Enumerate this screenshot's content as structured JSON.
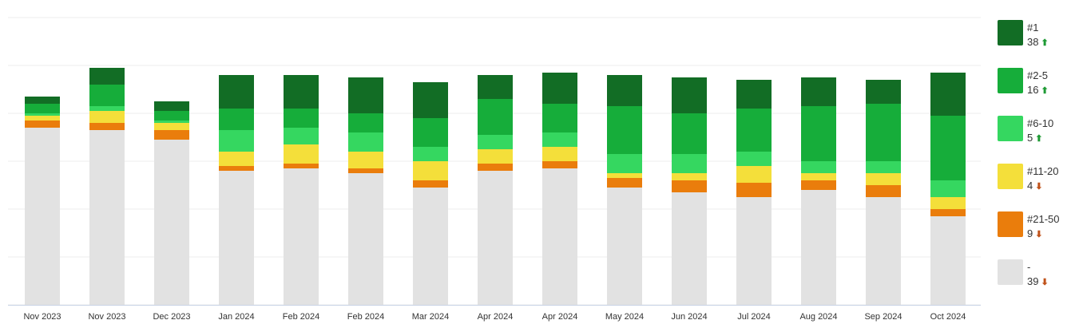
{
  "chart_data": {
    "type": "bar",
    "stacked": true,
    "categories": [
      "Nov 2023",
      "Nov 2023",
      "Dec 2023",
      "Jan 2024",
      "Feb 2024",
      "Feb 2024",
      "Mar 2024",
      "Apr 2024",
      "Apr 2024",
      "May 2024",
      "Jun 2024",
      "Jul 2024",
      "Aug 2024",
      "Sep 2024",
      "Oct 2024"
    ],
    "ylim": [
      0,
      120
    ],
    "grid": true,
    "legend_position": "right",
    "series": [
      {
        "name": "-",
        "color": "#e2e2e2",
        "values": [
          74,
          73,
          69,
          56,
          57,
          55,
          49,
          56,
          57,
          49,
          47,
          45,
          48,
          45,
          37
        ]
      },
      {
        "name": "#21-50",
        "color": "#ea7d0c",
        "values": [
          3,
          3,
          4,
          2,
          2,
          2,
          3,
          3,
          3,
          4,
          5,
          6,
          4,
          5,
          3
        ]
      },
      {
        "name": "#11-20",
        "color": "#f4df3a",
        "values": [
          2,
          5,
          3,
          6,
          8,
          7,
          8,
          6,
          6,
          2,
          3,
          7,
          3,
          5,
          5
        ]
      },
      {
        "name": "#6-10",
        "color": "#35d760",
        "values": [
          1,
          2,
          1,
          9,
          7,
          8,
          6,
          6,
          6,
          8,
          8,
          6,
          5,
          5,
          7
        ]
      },
      {
        "name": "#2-5",
        "color": "#16ad3a",
        "values": [
          4,
          9,
          4,
          9,
          8,
          8,
          12,
          15,
          12,
          20,
          17,
          18,
          23,
          24,
          27
        ]
      },
      {
        "name": "#1",
        "color": "#126d25",
        "values": [
          3,
          7,
          4,
          14,
          14,
          15,
          15,
          10,
          13,
          13,
          15,
          12,
          12,
          10,
          18
        ]
      }
    ]
  },
  "legend": [
    {
      "label": "#1",
      "value": "38",
      "trend": "up",
      "color": "#126d25"
    },
    {
      "label": "#2-5",
      "value": "16",
      "trend": "up",
      "color": "#16ad3a"
    },
    {
      "label": "#6-10",
      "value": "5",
      "trend": "up",
      "color": "#35d760"
    },
    {
      "label": "#11-20",
      "value": "4",
      "trend": "down",
      "color": "#f4df3a"
    },
    {
      "label": "#21-50",
      "value": "9",
      "trend": "down",
      "color": "#ea7d0c"
    },
    {
      "label": "-",
      "value": "39",
      "trend": "down",
      "color": "#e2e2e2"
    }
  ]
}
